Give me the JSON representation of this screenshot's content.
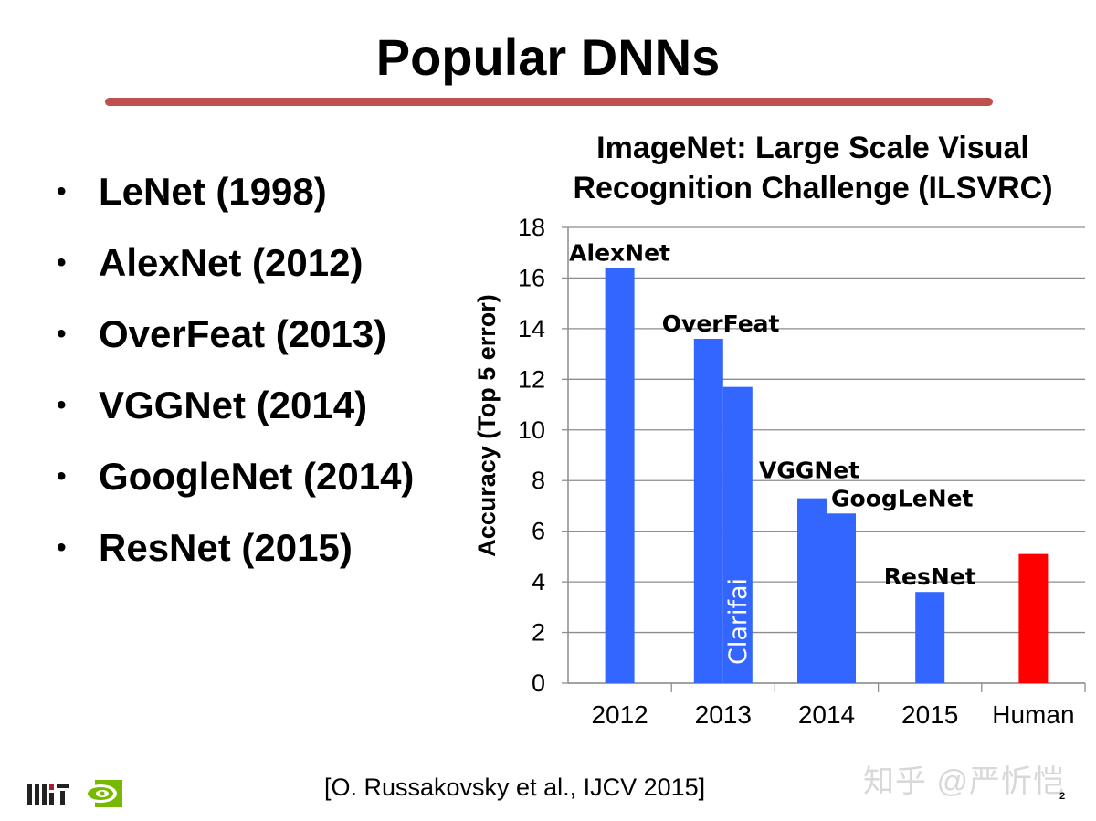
{
  "slide": {
    "title": "Popular DNNs",
    "bullets": [
      "LeNet (1998)",
      "AlexNet (2012)",
      "OverFeat (2013)",
      "VGGNet (2014)",
      "GoogleNet (2014)",
      "ResNet (2015)"
    ],
    "bullet_symbol": "•",
    "citation": "[O. Russakovsky et al., IJCV 2015]",
    "page_number": "2",
    "watermark": "知乎 @严忻恺",
    "logos": [
      "mit-logo",
      "nvidia-logo"
    ],
    "accent_color": "#c0504d"
  },
  "chart_data": {
    "type": "bar",
    "title": "ImageNet: Large Scale Visual Recognition Challenge (ILSVRC)",
    "title_lines": [
      "ImageNet: Large Scale Visual",
      "Recognition Challenge (ILSVRC)"
    ],
    "ylabel": "Accuracy (Top 5 error)",
    "xlabel": "",
    "ylim": [
      0,
      18
    ],
    "yticks": [
      "0",
      "2",
      "4",
      "6",
      "8",
      "10",
      "12",
      "14",
      "16",
      "18"
    ],
    "grid": true,
    "categories": [
      "2012",
      "2013",
      "2014",
      "2015",
      "Human"
    ],
    "bars": [
      {
        "category": "2012",
        "value": 16.4,
        "label": "AlexNet",
        "color": "#3366ff"
      },
      {
        "category": "2013",
        "value": 13.6,
        "label": "OverFeat",
        "color": "#3366ff"
      },
      {
        "category": "2013",
        "value": 11.7,
        "label": "Clarifai",
        "color": "#3366ff"
      },
      {
        "category": "2014",
        "value": 7.3,
        "label": "VGGNet",
        "color": "#3366ff"
      },
      {
        "category": "2014",
        "value": 6.7,
        "label": "GoogLeNet",
        "color": "#3366ff"
      },
      {
        "category": "2015",
        "value": 3.6,
        "label": "ResNet",
        "color": "#3366ff"
      },
      {
        "category": "Human",
        "value": 5.1,
        "label": "",
        "color": "#ff0000"
      }
    ]
  }
}
